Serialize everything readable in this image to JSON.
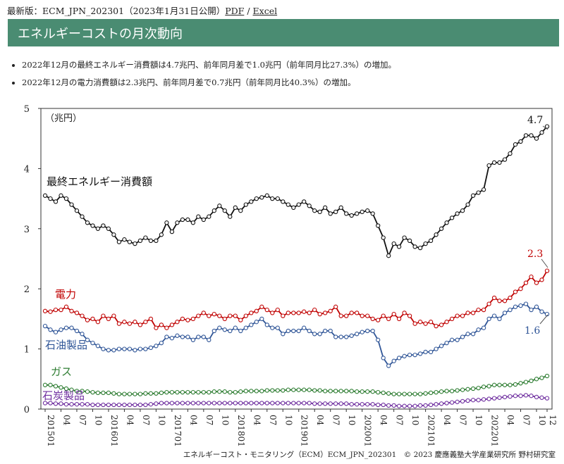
{
  "header": {
    "label": "最新版：ECM_JPN_202301（2023年1月31日公開）",
    "pdf_link": "PDF",
    "separator": " / ",
    "excel_link": "Excel"
  },
  "title": "エネルギーコストの月次動向",
  "bullets": [
    "2022年12月の最終エネルギー消費額は4.7兆円、前年同月差で1.0兆円（前年同月比27.3%）の増加。",
    "2022年12月の電力消費額は2.3兆円、前年同月差で0.7兆円（前年同月比40.3%）の増加。"
  ],
  "footer": "エネルギーコスト・モニタリング（ECM）ECM_JPN_202301　© 2023 慶應義塾大学産業研究所 野村研究室",
  "chart_data": {
    "type": "line",
    "unit_label": "（兆円）",
    "ylim": [
      0,
      5
    ],
    "y_ticks": [
      "0",
      "1",
      "2",
      "3",
      "4",
      "5"
    ],
    "x_tick_labels": [
      "201501",
      "04",
      "07",
      "10",
      "201601",
      "04",
      "07",
      "10",
      "201701",
      "04",
      "07",
      "10",
      "201801",
      "04",
      "07",
      "10",
      "201901",
      "04",
      "07",
      "10",
      "202001",
      "04",
      "07",
      "10",
      "202101",
      "04",
      "07",
      "10",
      "202201",
      "04",
      "07",
      "10",
      "12"
    ],
    "x_start": "2015-01",
    "months": 96,
    "end_labels": {
      "final": "4.7",
      "electricity": "2.3",
      "oil": "1.6"
    },
    "series": [
      {
        "name": "最終エネルギー消費額",
        "color": "#111111",
        "values": [
          3.55,
          3.5,
          3.45,
          3.55,
          3.5,
          3.4,
          3.3,
          3.2,
          3.1,
          3.05,
          3.0,
          3.05,
          3.0,
          2.9,
          2.78,
          2.82,
          2.78,
          2.75,
          2.8,
          2.85,
          2.8,
          2.8,
          2.9,
          3.1,
          2.95,
          3.1,
          3.15,
          3.15,
          3.1,
          3.2,
          3.15,
          3.2,
          3.3,
          3.38,
          3.3,
          3.2,
          3.35,
          3.3,
          3.4,
          3.45,
          3.5,
          3.52,
          3.55,
          3.5,
          3.5,
          3.45,
          3.4,
          3.35,
          3.4,
          3.45,
          3.38,
          3.3,
          3.28,
          3.35,
          3.25,
          3.28,
          3.35,
          3.25,
          3.22,
          3.25,
          3.28,
          3.3,
          3.25,
          3.05,
          2.85,
          2.55,
          2.75,
          2.7,
          2.85,
          2.8,
          2.7,
          2.68,
          2.75,
          2.8,
          2.9,
          3.0,
          3.1,
          3.18,
          3.25,
          3.3,
          3.4,
          3.55,
          3.6,
          3.65,
          4.05,
          4.1,
          4.1,
          4.15,
          4.25,
          4.4,
          4.45,
          4.55,
          4.55,
          4.5,
          4.6,
          4.7
        ]
      },
      {
        "name": "電力",
        "color": "#c00000",
        "values": [
          1.63,
          1.62,
          1.65,
          1.65,
          1.7,
          1.63,
          1.6,
          1.55,
          1.48,
          1.5,
          1.45,
          1.55,
          1.5,
          1.55,
          1.42,
          1.45,
          1.42,
          1.45,
          1.4,
          1.45,
          1.5,
          1.35,
          1.4,
          1.35,
          1.4,
          1.45,
          1.5,
          1.48,
          1.5,
          1.55,
          1.6,
          1.55,
          1.58,
          1.55,
          1.5,
          1.55,
          1.55,
          1.48,
          1.55,
          1.6,
          1.63,
          1.7,
          1.65,
          1.6,
          1.65,
          1.55,
          1.6,
          1.6,
          1.6,
          1.62,
          1.6,
          1.65,
          1.58,
          1.6,
          1.63,
          1.7,
          1.55,
          1.55,
          1.6,
          1.6,
          1.55,
          1.55,
          1.5,
          1.48,
          1.55,
          1.5,
          1.58,
          1.5,
          1.6,
          1.55,
          1.42,
          1.45,
          1.42,
          1.45,
          1.38,
          1.4,
          1.45,
          1.5,
          1.55,
          1.55,
          1.6,
          1.6,
          1.65,
          1.65,
          1.75,
          1.85,
          1.8,
          1.8,
          1.85,
          1.95,
          2.0,
          2.1,
          2.2,
          2.1,
          2.15,
          2.3
        ]
      },
      {
        "name": "石油製品",
        "color": "#2f5597",
        "values": [
          1.38,
          1.32,
          1.28,
          1.32,
          1.35,
          1.35,
          1.3,
          1.25,
          1.15,
          1.1,
          1.05,
          1.0,
          0.98,
          0.98,
          1.0,
          1.0,
          1.0,
          0.98,
          1.0,
          1.0,
          1.02,
          1.05,
          1.1,
          1.2,
          1.18,
          1.22,
          1.2,
          1.2,
          1.15,
          1.2,
          1.2,
          1.15,
          1.3,
          1.35,
          1.32,
          1.3,
          1.35,
          1.3,
          1.35,
          1.4,
          1.45,
          1.5,
          1.4,
          1.35,
          1.35,
          1.25,
          1.3,
          1.3,
          1.3,
          1.35,
          1.3,
          1.25,
          1.25,
          1.3,
          1.3,
          1.2,
          1.2,
          1.2,
          1.22,
          1.25,
          1.28,
          1.3,
          1.3,
          1.15,
          0.85,
          0.72,
          0.8,
          0.85,
          0.88,
          0.9,
          0.9,
          0.92,
          0.95,
          0.95,
          1.0,
          1.05,
          1.1,
          1.15,
          1.15,
          1.2,
          1.25,
          1.25,
          1.32,
          1.35,
          1.5,
          1.55,
          1.5,
          1.6,
          1.65,
          1.7,
          1.72,
          1.75,
          1.65,
          1.7,
          1.62,
          1.58
        ]
      },
      {
        "name": "ガス",
        "color": "#2e7d32",
        "values": [
          0.4,
          0.4,
          0.38,
          0.36,
          0.34,
          0.32,
          0.3,
          0.3,
          0.29,
          0.28,
          0.27,
          0.27,
          0.27,
          0.26,
          0.25,
          0.25,
          0.25,
          0.25,
          0.25,
          0.26,
          0.26,
          0.26,
          0.27,
          0.28,
          0.28,
          0.28,
          0.28,
          0.28,
          0.28,
          0.28,
          0.28,
          0.28,
          0.29,
          0.29,
          0.29,
          0.28,
          0.28,
          0.29,
          0.3,
          0.3,
          0.3,
          0.3,
          0.31,
          0.31,
          0.31,
          0.31,
          0.32,
          0.32,
          0.32,
          0.32,
          0.32,
          0.31,
          0.31,
          0.3,
          0.3,
          0.3,
          0.3,
          0.3,
          0.3,
          0.29,
          0.29,
          0.29,
          0.29,
          0.28,
          0.27,
          0.26,
          0.25,
          0.25,
          0.25,
          0.25,
          0.25,
          0.25,
          0.26,
          0.27,
          0.28,
          0.29,
          0.3,
          0.3,
          0.31,
          0.32,
          0.33,
          0.34,
          0.35,
          0.37,
          0.38,
          0.4,
          0.4,
          0.4,
          0.4,
          0.41,
          0.43,
          0.45,
          0.47,
          0.5,
          0.52,
          0.55
        ]
      },
      {
        "name": "石炭製品",
        "color": "#7030a0",
        "values": [
          0.1,
          0.1,
          0.09,
          0.09,
          0.08,
          0.08,
          0.08,
          0.08,
          0.08,
          0.07,
          0.07,
          0.07,
          0.07,
          0.07,
          0.07,
          0.07,
          0.07,
          0.07,
          0.07,
          0.07,
          0.08,
          0.09,
          0.1,
          0.1,
          0.1,
          0.1,
          0.1,
          0.1,
          0.1,
          0.1,
          0.1,
          0.1,
          0.1,
          0.1,
          0.1,
          0.1,
          0.1,
          0.1,
          0.1,
          0.1,
          0.1,
          0.1,
          0.1,
          0.1,
          0.1,
          0.1,
          0.1,
          0.1,
          0.1,
          0.1,
          0.1,
          0.09,
          0.09,
          0.09,
          0.09,
          0.09,
          0.09,
          0.09,
          0.08,
          0.08,
          0.08,
          0.08,
          0.08,
          0.07,
          0.07,
          0.06,
          0.06,
          0.05,
          0.05,
          0.05,
          0.05,
          0.06,
          0.06,
          0.07,
          0.08,
          0.09,
          0.1,
          0.11,
          0.12,
          0.13,
          0.14,
          0.15,
          0.15,
          0.16,
          0.17,
          0.18,
          0.19,
          0.2,
          0.21,
          0.22,
          0.22,
          0.23,
          0.22,
          0.2,
          0.19,
          0.18
        ]
      }
    ]
  }
}
